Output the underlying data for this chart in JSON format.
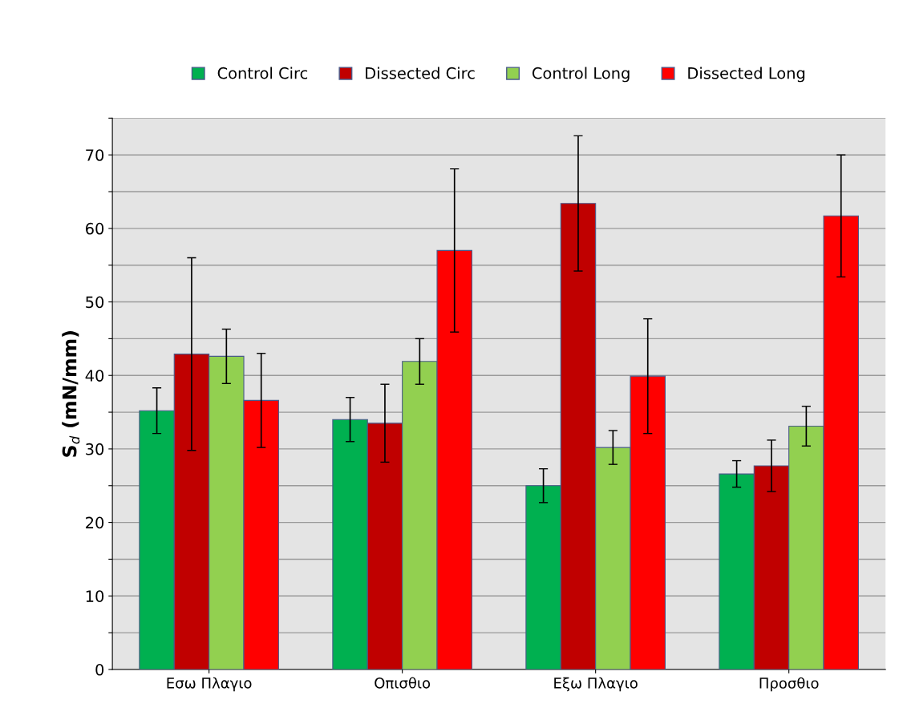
{
  "chart_data": {
    "type": "bar",
    "ylabel": "S$_{d}$ (mN/mm)",
    "categories": [
      "Εσω Πλαγιο",
      "Οπισθιο",
      "Εξω Πλαγιο",
      "Προσθιο"
    ],
    "series": [
      {
        "name": "Control Circ",
        "color": "#00b050",
        "values": [
          35.2,
          34.0,
          25.0,
          26.6
        ],
        "errors": [
          3.1,
          3.0,
          2.3,
          1.8
        ]
      },
      {
        "name": "Dissected Circ",
        "color": "#c00000",
        "values": [
          42.9,
          33.5,
          63.4,
          27.7
        ],
        "errors": [
          13.1,
          5.3,
          9.2,
          3.5
        ]
      },
      {
        "name": "Control Long",
        "color": "#92d050",
        "values": [
          42.6,
          41.9,
          30.2,
          33.1
        ],
        "errors": [
          3.7,
          3.1,
          2.3,
          2.7
        ]
      },
      {
        "name": "Dissected Long",
        "color": "#ff0000",
        "values": [
          36.6,
          57.0,
          39.9,
          61.7
        ],
        "errors": [
          6.4,
          11.1,
          7.8,
          8.3
        ]
      }
    ],
    "ylim": [
      0,
      75
    ],
    "yticks": [
      0,
      {
        "value": 5,
        "label": null
      },
      10,
      {
        "value": 15,
        "label": null
      },
      20,
      {
        "value": 25,
        "label": null
      },
      30,
      {
        "value": 35,
        "label": null
      },
      40,
      {
        "value": 45,
        "label": null
      },
      50,
      {
        "value": 55,
        "label": null
      },
      60,
      {
        "value": 65,
        "label": null
      },
      70,
      {
        "value": 75,
        "label": null
      }
    ],
    "grid": "y",
    "legend": "top"
  }
}
